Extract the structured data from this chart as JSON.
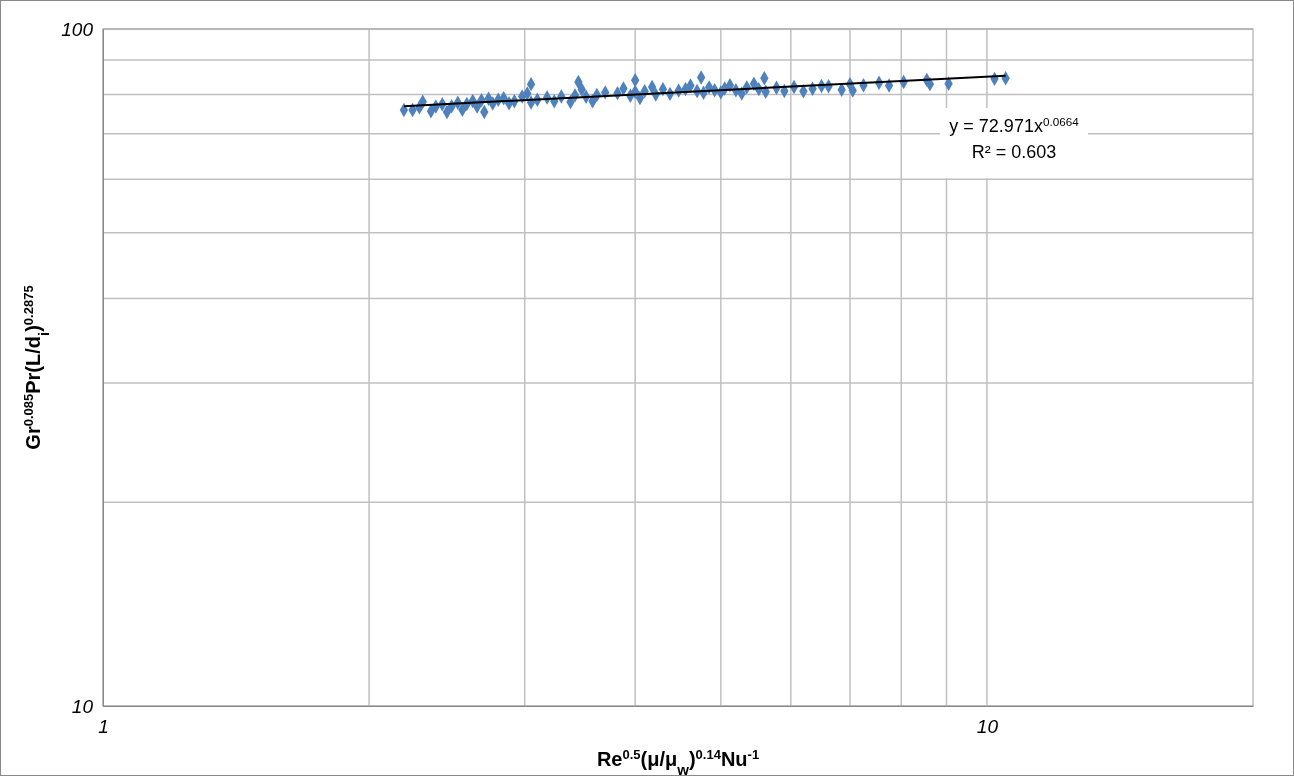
{
  "chart_data": {
    "type": "scatter",
    "xlabel": "Re$^{0.5}$(μ/μ$_{w}$)$^{0.14}$Nu$^{-1}$",
    "ylabel": "Gr$^{0.085}$Pr(L/d$_{i}$)$^{0.2875}$",
    "log": "xy",
    "grid": true,
    "xlim": [
      1,
      20
    ],
    "ylim": [
      10,
      100
    ],
    "xticks": [
      1,
      {
        "value": 2,
        "label": null
      },
      {
        "value": 3,
        "label": null
      },
      {
        "value": 4,
        "label": null
      },
      {
        "value": 5,
        "label": null
      },
      {
        "value": 6,
        "label": null
      },
      {
        "value": 7,
        "label": null
      },
      {
        "value": 8,
        "label": null
      },
      {
        "value": 9,
        "label": null
      },
      10
    ],
    "yticks": [
      10,
      {
        "value": 20,
        "label": null
      },
      {
        "value": 30,
        "label": null
      },
      {
        "value": 40,
        "label": null
      },
      {
        "value": 50,
        "label": null
      },
      {
        "value": 60,
        "label": null
      },
      {
        "value": 70,
        "label": null
      },
      {
        "value": 80,
        "label": null
      },
      {
        "value": 90,
        "label": null
      },
      100
    ],
    "annotations": [
      "y = 72.971x$^{0.0664}$",
      "R² = 0.603"
    ],
    "series": [
      {
        "marker": "diamond",
        "color": "#4f81bd",
        "x": [
          2.19,
          2.24,
          2.28,
          2.3,
          2.35,
          2.38,
          2.42,
          2.45,
          2.48,
          2.52,
          2.55,
          2.58,
          2.62,
          2.65,
          2.68,
          2.7,
          2.73,
          2.76,
          2.8,
          2.84,
          2.88,
          2.92,
          2.98,
          3.02,
          3.05,
          3.05,
          3.1,
          3.18,
          3.24,
          3.3,
          3.38,
          3.42,
          3.45,
          3.48,
          3.52,
          3.58,
          3.62,
          3.7,
          3.82,
          3.88,
          3.95,
          4.0,
          4.0,
          4.05,
          4.1,
          4.18,
          4.22,
          4.3,
          4.38,
          4.48,
          4.56,
          4.62,
          4.7,
          4.75,
          4.78,
          4.85,
          4.92,
          5.0,
          5.05,
          5.12,
          5.2,
          5.28,
          5.35,
          5.45,
          5.52,
          5.6,
          5.62,
          5.78,
          5.9,
          6.05,
          6.2,
          6.35,
          6.5,
          6.62,
          6.85,
          7.0,
          7.05,
          7.25,
          7.55,
          7.75,
          8.05,
          8.55,
          8.62,
          9.05,
          10.2,
          10.5
        ],
        "values": [
          75.9,
          75.9,
          76.6,
          78.1,
          75.6,
          76.8,
          77.4,
          75.4,
          76.9,
          77.8,
          76.0,
          77.5,
          78.3,
          76.8,
          78.5,
          75.4,
          78.9,
          77.6,
          78.6,
          79.0,
          77.7,
          78.2,
          79.5,
          80.3,
          77.9,
          82.9,
          78.6,
          79.2,
          78.2,
          79.5,
          78.0,
          79.8,
          83.5,
          81.4,
          79.4,
          78.2,
          79.9,
          80.6,
          80.4,
          81.7,
          79.7,
          80.8,
          84.0,
          79.1,
          80.9,
          82.1,
          80.0,
          81.5,
          80.2,
          81.1,
          81.5,
          82.5,
          81.0,
          84.8,
          80.5,
          82.0,
          81.2,
          80.6,
          81.7,
          82.6,
          81.2,
          80.3,
          82.0,
          83.0,
          81.5,
          84.6,
          80.8,
          81.9,
          81.0,
          82.1,
          80.9,
          81.6,
          82.4,
          82.3,
          81.3,
          82.9,
          81.1,
          82.6,
          83.3,
          82.5,
          83.5,
          84.1,
          82.9,
          83.0,
          84.4,
          84.6
        ]
      },
      {
        "type": "line",
        "color": "#000000",
        "x": [
          2.19,
          10.5
        ],
        "values": [
          76.9,
          85.3
        ]
      }
    ]
  }
}
